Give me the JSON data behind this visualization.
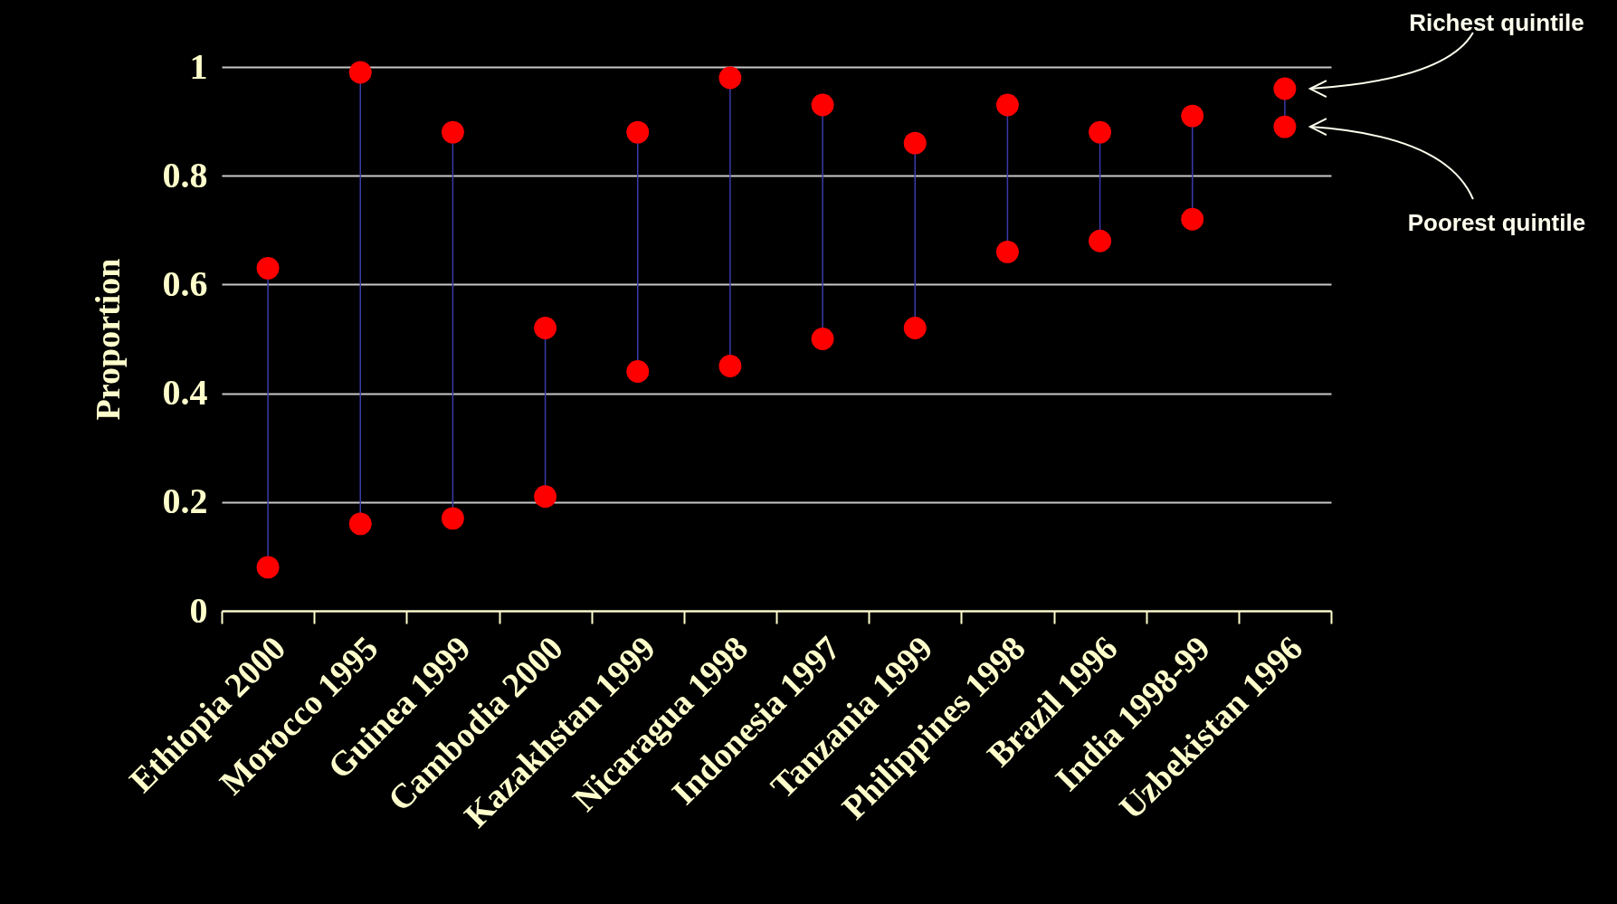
{
  "chart_data": {
    "type": "scatter",
    "ylabel": "Proportion",
    "categories": [
      "Ethiopia 2000",
      "Morocco 1995",
      "Guinea 1999",
      "Cambodia 2000",
      "Kazakhstan 1999",
      "Nicaragua 1998",
      "Indonesia 1997",
      "Tanzania 1999",
      "Philippines 1998",
      "Brazil 1996",
      "India 1998-99",
      "Uzbekistan 1996"
    ],
    "series": [
      {
        "name": "Richest quintile",
        "color": "#ff0000",
        "values": [
          0.63,
          0.99,
          0.88,
          0.52,
          0.88,
          0.98,
          0.93,
          0.86,
          0.93,
          0.88,
          0.91,
          0.96
        ]
      },
      {
        "name": "Poorest quintile",
        "color": "#ff0000",
        "values": [
          0.08,
          0.16,
          0.17,
          0.21,
          0.44,
          0.45,
          0.5,
          0.52,
          0.66,
          0.68,
          0.72,
          0.89
        ]
      }
    ],
    "ylim": [
      0,
      1
    ],
    "yticks": [
      0,
      0.2,
      0.4,
      0.6,
      0.8,
      1
    ],
    "grid": "y",
    "legend": false,
    "marker": "circle"
  }
}
